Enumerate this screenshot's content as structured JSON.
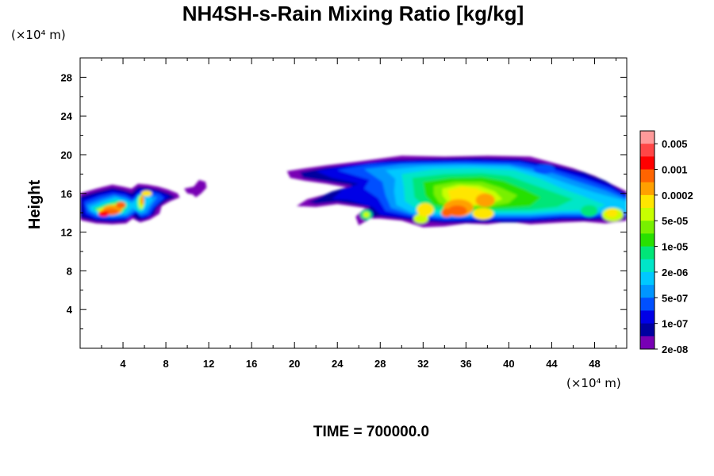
{
  "chart_data": {
    "type": "heatmap",
    "title": "NH4SH-s-Rain Mixing Ratio [kg/kg]",
    "ylabel": "Height",
    "x_unit": "(×10⁴ m)",
    "y_unit": "(×10⁴ m)",
    "x_ticks": [
      4,
      8,
      12,
      16,
      20,
      24,
      28,
      32,
      36,
      40,
      44,
      48
    ],
    "y_ticks": [
      4,
      8,
      12,
      16,
      20,
      24,
      28
    ],
    "xlim": [
      0,
      51
    ],
    "ylim": [
      0,
      30
    ],
    "time_label": "TIME = 700000.0",
    "colorbar": {
      "labels": [
        "0.005",
        "0.001",
        "0.0002",
        "5e-05",
        "1e-05",
        "2e-06",
        "5e-07",
        "1e-07",
        "2e-08"
      ],
      "colors_top_to_bottom": [
        "#ff9a9a",
        "#ff4646",
        "#ff0000",
        "#ff6400",
        "#ffa000",
        "#ffe600",
        "#c8ff00",
        "#78f000",
        "#28e000",
        "#00e678",
        "#00e6c8",
        "#00c8ff",
        "#0096ff",
        "#0050ff",
        "#0000e6",
        "#0000a0",
        "#7800b4"
      ]
    },
    "regions": [
      {
        "name": "left cloud",
        "x_range": [
          0.2,
          9.3
        ],
        "y_range": [
          12.8,
          17.0
        ],
        "peak": "0.001"
      },
      {
        "name": "small cloud",
        "x_range": [
          9.7,
          11.8
        ],
        "y_range": [
          15.5,
          17.6
        ],
        "peak": "2e-08"
      },
      {
        "name": "main cloud",
        "x_range": [
          19.3,
          51.0
        ],
        "y_range": [
          12.5,
          19.9
        ],
        "peak": "0.001"
      }
    ]
  }
}
